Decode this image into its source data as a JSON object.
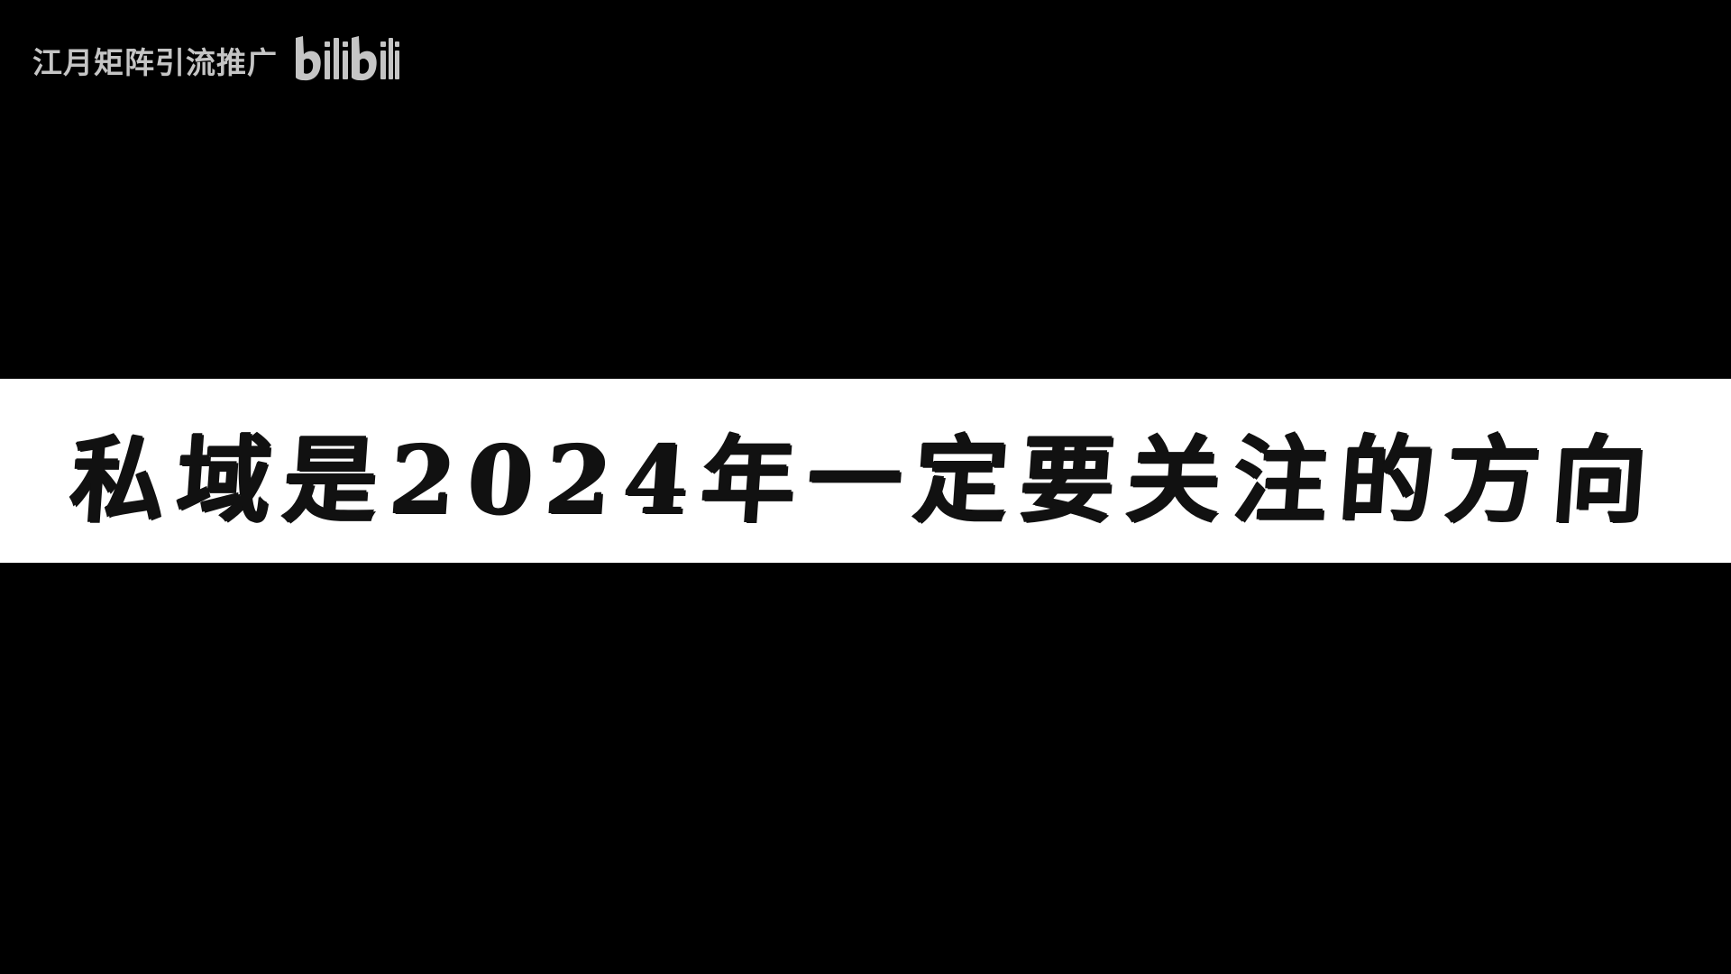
{
  "watermark": {
    "channel_name": "江月矩阵引流推广",
    "logo_name": "bilibili-logo",
    "logo_text": "bilibili"
  },
  "title": {
    "text": "私域是2024年一定要关注的方向"
  },
  "colors": {
    "background": "#000000",
    "band": "#ffffff",
    "title_text": "#111111",
    "watermark": "#e8e8e8"
  }
}
